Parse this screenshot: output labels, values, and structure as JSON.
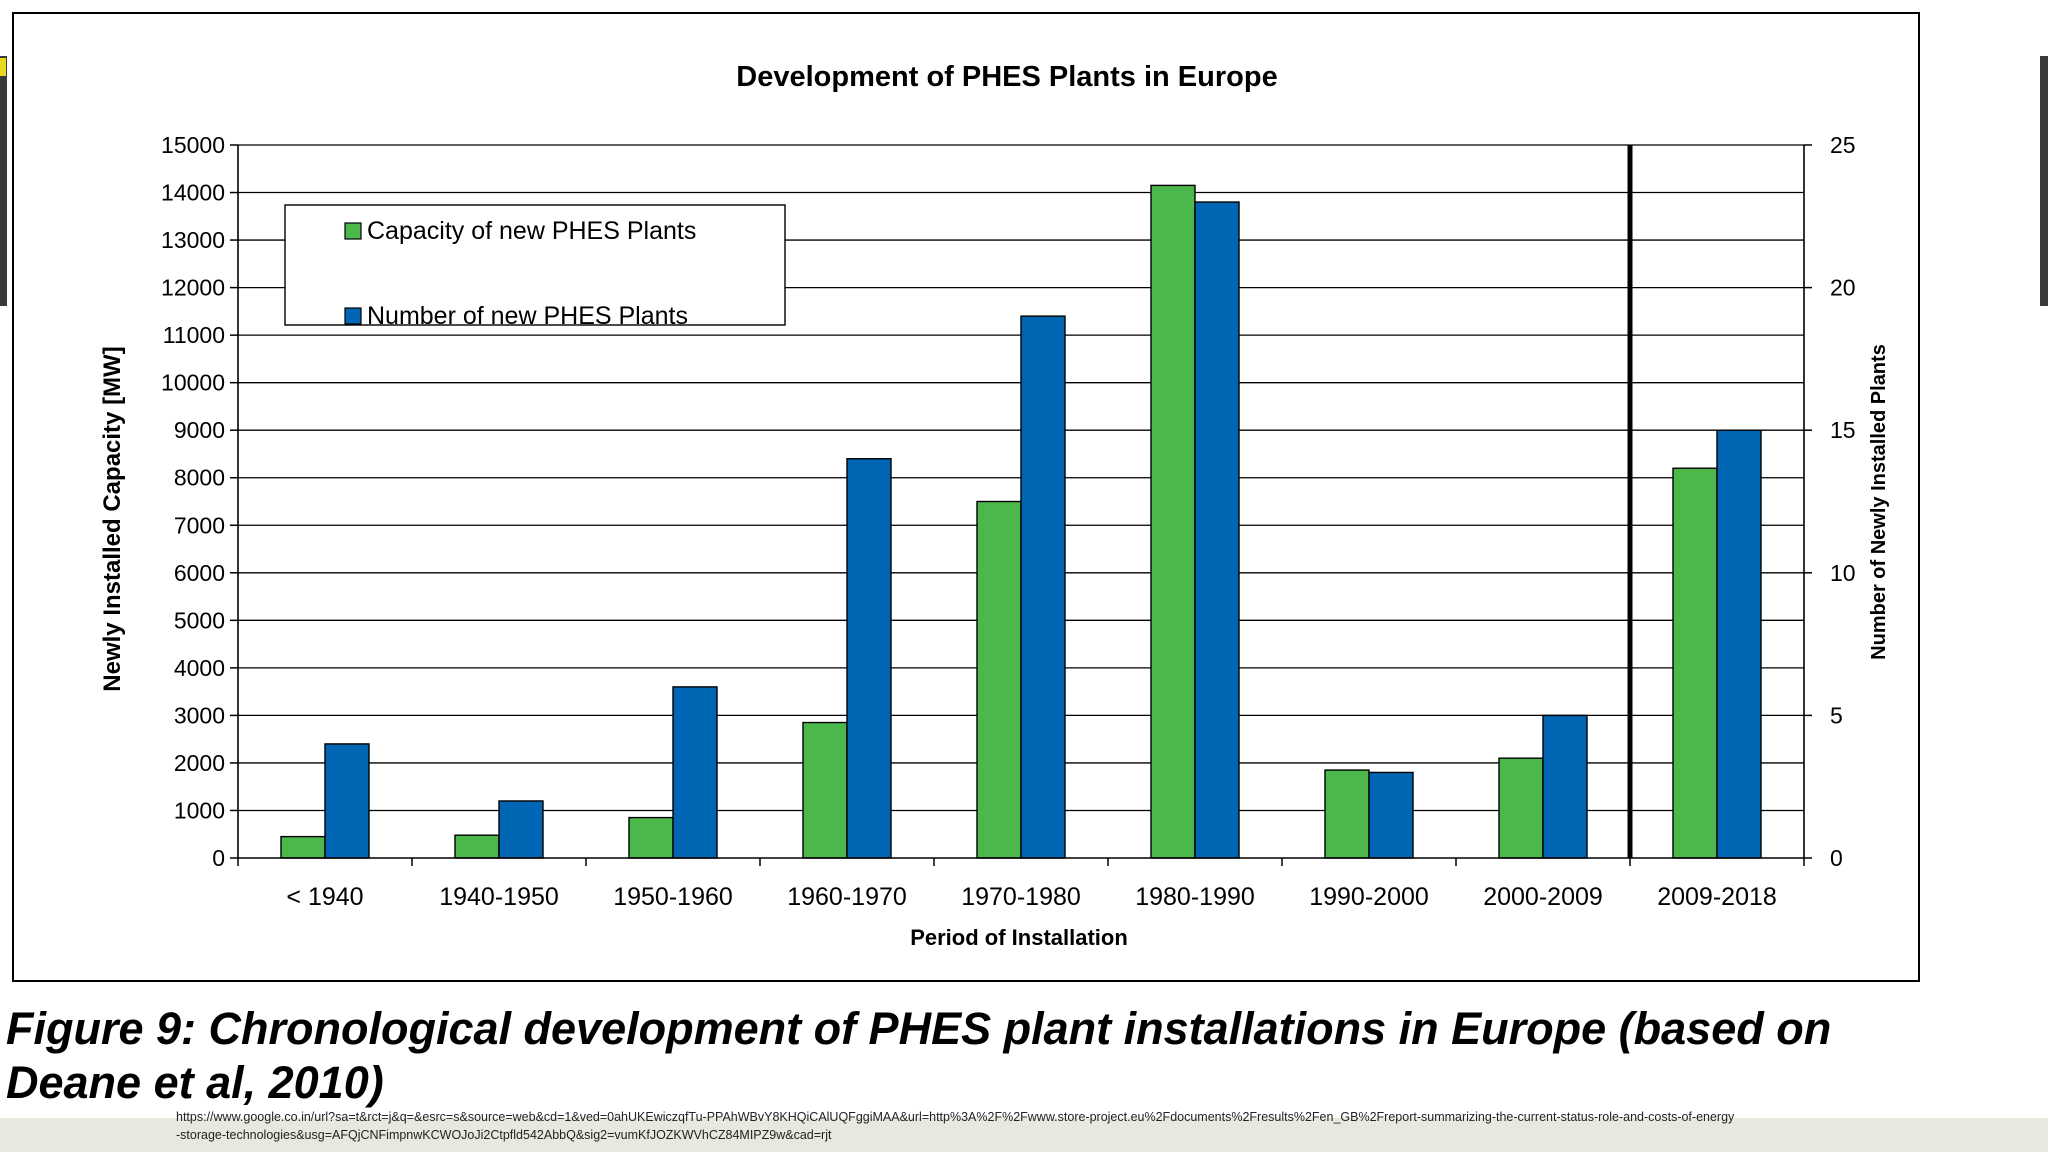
{
  "chart_data": {
    "type": "bar",
    "title": "Development of PHES Plants in Europe",
    "xlabel": "Period of Installation",
    "ylabel": "Newly Installed Capacity [MW]",
    "ylabel_right": "Number of Newly Installed Plants",
    "categories": [
      "< 1940",
      "1940-1950",
      "1950-1960",
      "1960-1970",
      "1970-1980",
      "1980-1990",
      "1990-2000",
      "2000-2009",
      "2009-2018"
    ],
    "series": [
      {
        "name": "Capacity of new PHES Plants",
        "axis": "left",
        "color": "#4cb84c",
        "values": [
          450,
          480,
          850,
          2850,
          7500,
          14150,
          1850,
          2100,
          8200
        ]
      },
      {
        "name": "Number of new PHES Plants",
        "axis": "right",
        "color": "#0066b3",
        "values": [
          4,
          2,
          6,
          14,
          19,
          23,
          3,
          5,
          15
        ]
      }
    ],
    "ylim": [
      0,
      15000
    ],
    "yticks": [
      "0",
      "1000",
      "2000",
      "3000",
      "4000",
      "5000",
      "6000",
      "7000",
      "8000",
      "9000",
      "10000",
      "11000",
      "12000",
      "13000",
      "14000",
      "15000"
    ],
    "y2lim": [
      0,
      25
    ],
    "y2ticks": [
      "0",
      "5",
      "10",
      "15",
      "20",
      "25"
    ],
    "grid": true,
    "legend_position": "top-left",
    "divider_between": [
      "2000-2009",
      "2009-2018"
    ]
  },
  "caption": "Figure 9: Chronological development of PHES plant installations in Europe (based on Deane et al, 2010)",
  "source_url": "https://www.google.co.in/url?sa=t&rct=j&q=&esrc=s&source=web&cd=1&ved=0ahUKEwiczqfTu-PPAhWBvY8KHQiCAlUQFggiMAA&url=http%3A%2F%2Fwww.store-project.eu%2Fdocuments%2Fresults%2Fen_GB%2Freport-summarizing-the-current-status-role-and-costs-of-energy-storage-technologies&usg=AFQjCNFimpnwKCWOJoJi2Ctpfld542AbbQ&sig2=vumKfJOZKWVhCZ84MIPZ9w&cad=rjt",
  "colors": {
    "capacity": "#4cb84c",
    "count": "#0066b3",
    "accent": "#e8d820"
  }
}
